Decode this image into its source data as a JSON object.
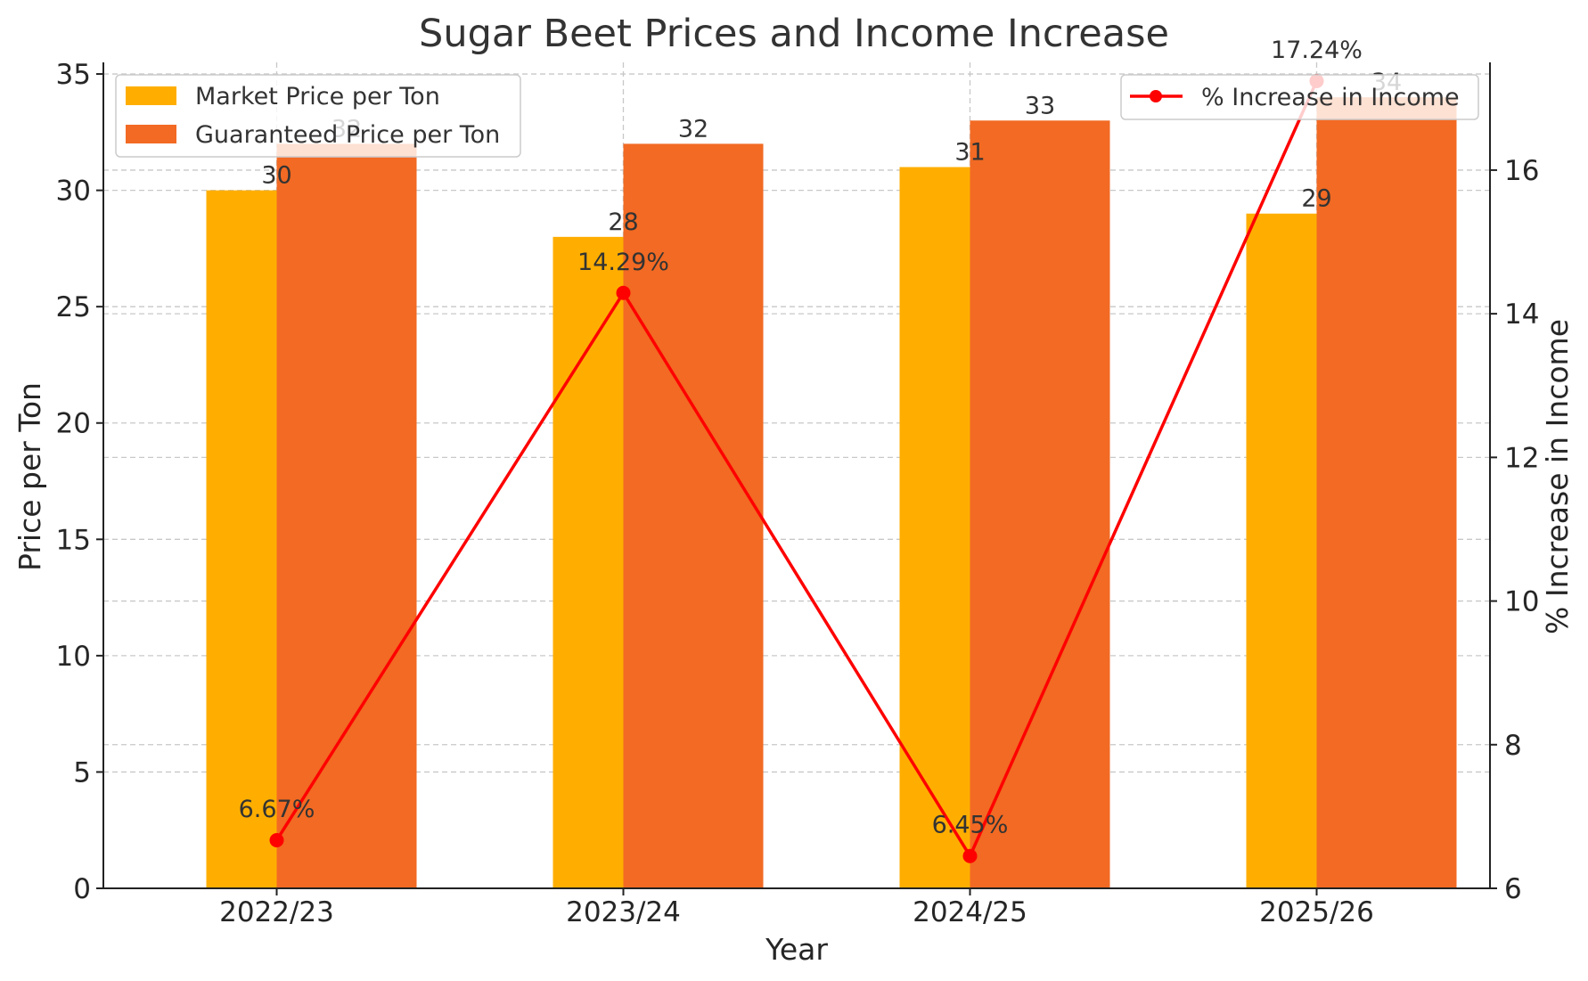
{
  "colors": {
    "market": "#ffae00",
    "guaranteed": "#f26a23",
    "income": "#ff0000",
    "axis": "#222222",
    "grid": "#c8c8c8",
    "text": "#333333"
  },
  "chart_data": {
    "type": "bar",
    "title": "Sugar Beet Prices and Income Increase",
    "xlabel": "Year",
    "ylabel": "Price per Ton",
    "y2label": "% Increase in Income",
    "categories": [
      "2022/23",
      "2023/24",
      "2024/25",
      "2025/26"
    ],
    "ylim": [
      0,
      35.5
    ],
    "y2lim": [
      6,
      17.5
    ],
    "yticks": [
      0,
      5,
      10,
      15,
      20,
      25,
      30,
      35
    ],
    "y2ticks": [
      6,
      8,
      10,
      12,
      14,
      16
    ],
    "grid": true,
    "series": [
      {
        "name": "Market Price per Ton",
        "type": "bar",
        "axis": "left",
        "values": [
          30,
          28,
          31,
          29
        ],
        "labels": [
          "30",
          "28",
          "31",
          "29"
        ]
      },
      {
        "name": "Guaranteed Price per Ton",
        "type": "bar",
        "axis": "left",
        "values": [
          32,
          32,
          33,
          34
        ],
        "labels": [
          "32",
          "32",
          "33",
          "34"
        ]
      },
      {
        "name": "% Increase in Income",
        "type": "line",
        "axis": "right",
        "values": [
          6.67,
          14.29,
          6.45,
          17.24
        ],
        "labels": [
          "6.67%",
          "14.29%",
          "6.45%",
          "17.24%"
        ]
      }
    ],
    "legend": {
      "bars": "top-left",
      "line": "top-right"
    }
  }
}
